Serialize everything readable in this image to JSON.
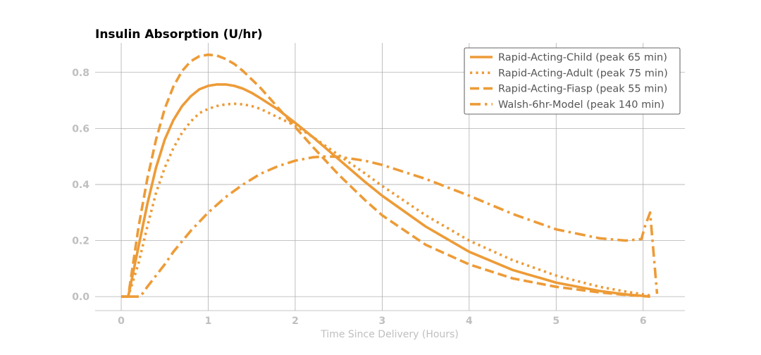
{
  "chart_data": {
    "type": "line",
    "title": "Insulin Absorption (U/hr)",
    "xlabel": "Time Since Delivery (Hours)",
    "ylabel": "",
    "xlim": [
      -0.3,
      6.48
    ],
    "ylim": [
      -0.05,
      0.905
    ],
    "xticks": [
      0,
      1,
      2,
      3,
      4,
      5,
      6
    ],
    "yticks": [
      0.0,
      0.2,
      0.4,
      0.6,
      0.8
    ],
    "xtick_labels": [
      "0",
      "1",
      "2",
      "3",
      "4",
      "5",
      "6"
    ],
    "ytick_labels": [
      "0.0",
      "0.2",
      "0.4",
      "0.6",
      "0.8"
    ],
    "grid": true,
    "legend_position": "top-right",
    "color": "#ED9B37",
    "series": [
      {
        "name": "Rapid-Acting-Child (peak 65 min)",
        "style": "solid",
        "x": [
          0,
          0.08,
          0.2,
          0.3,
          0.4,
          0.5,
          0.6,
          0.7,
          0.8,
          0.9,
          1.0,
          1.1,
          1.2,
          1.3,
          1.4,
          1.5,
          1.6,
          1.8,
          2.0,
          2.2,
          2.5,
          2.8,
          3.0,
          3.5,
          4.0,
          4.5,
          5.0,
          5.5,
          5.8,
          6.08
        ],
        "y": [
          0,
          0,
          0.18,
          0.33,
          0.46,
          0.56,
          0.63,
          0.68,
          0.715,
          0.74,
          0.752,
          0.757,
          0.757,
          0.752,
          0.742,
          0.727,
          0.708,
          0.668,
          0.62,
          0.57,
          0.49,
          0.41,
          0.36,
          0.25,
          0.16,
          0.095,
          0.05,
          0.02,
          0.008,
          0
        ]
      },
      {
        "name": "Rapid-Acting-Adult (peak 75 min)",
        "style": "dotted",
        "x": [
          0,
          0.08,
          0.2,
          0.3,
          0.4,
          0.5,
          0.6,
          0.7,
          0.8,
          0.9,
          1.0,
          1.1,
          1.2,
          1.3,
          1.4,
          1.5,
          1.6,
          1.8,
          2.0,
          2.2,
          2.5,
          2.8,
          3.0,
          3.5,
          4.0,
          4.5,
          5.0,
          5.5,
          5.8,
          6.08
        ],
        "y": [
          0,
          0,
          0.12,
          0.25,
          0.37,
          0.46,
          0.53,
          0.585,
          0.625,
          0.655,
          0.67,
          0.68,
          0.686,
          0.688,
          0.686,
          0.68,
          0.67,
          0.64,
          0.61,
          0.57,
          0.505,
          0.44,
          0.395,
          0.29,
          0.2,
          0.13,
          0.075,
          0.035,
          0.018,
          0.004
        ]
      },
      {
        "name": "Rapid-Acting-Fiasp (peak 55 min)",
        "style": "dashed",
        "x": [
          0,
          0.08,
          0.2,
          0.3,
          0.4,
          0.5,
          0.6,
          0.7,
          0.8,
          0.9,
          1.0,
          1.1,
          1.2,
          1.3,
          1.4,
          1.5,
          1.6,
          1.8,
          2.0,
          2.2,
          2.5,
          2.8,
          3.0,
          3.5,
          4.0,
          4.5,
          5.0,
          5.5,
          5.8,
          6.08
        ],
        "y": [
          0,
          0,
          0.25,
          0.42,
          0.56,
          0.67,
          0.75,
          0.805,
          0.84,
          0.858,
          0.863,
          0.86,
          0.848,
          0.83,
          0.805,
          0.775,
          0.745,
          0.675,
          0.605,
          0.535,
          0.435,
          0.345,
          0.29,
          0.185,
          0.115,
          0.065,
          0.035,
          0.015,
          0.006,
          0
        ]
      },
      {
        "name": "Walsh-6hr-Model (peak 140 min)",
        "style": "dashdot",
        "x": [
          0.08,
          0.18,
          0.22,
          0.3,
          0.4,
          0.5,
          0.6,
          0.8,
          1.0,
          1.2,
          1.4,
          1.6,
          1.8,
          2.0,
          2.2,
          2.33,
          2.5,
          2.8,
          3.0,
          3.5,
          4.0,
          4.5,
          5.0,
          5.5,
          5.8,
          5.98,
          6.02,
          6.08,
          6.16
        ],
        "y": [
          0,
          0,
          0,
          0.035,
          0.075,
          0.115,
          0.16,
          0.235,
          0.3,
          0.355,
          0.4,
          0.438,
          0.465,
          0.485,
          0.497,
          0.5,
          0.499,
          0.485,
          0.47,
          0.42,
          0.36,
          0.295,
          0.24,
          0.208,
          0.2,
          0.205,
          0.25,
          0.3,
          0.01
        ]
      }
    ]
  }
}
